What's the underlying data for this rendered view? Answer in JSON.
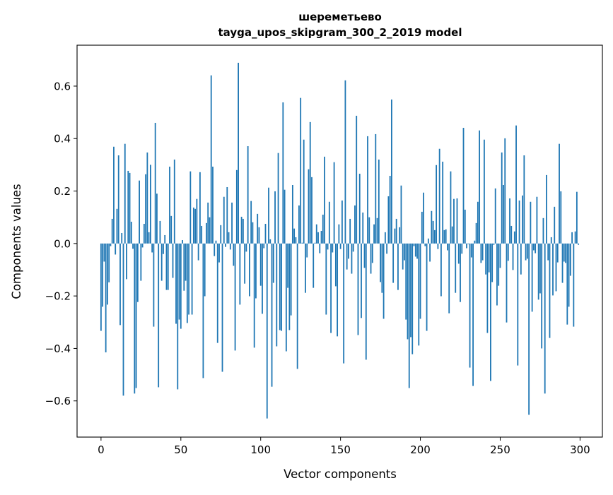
{
  "chart_data": {
    "type": "bar",
    "title": [
      "шереметьево",
      "tayga_upos_skipgram_300_2_2019 model"
    ],
    "xlabel": "Vector components",
    "ylabel": "Components values",
    "xlim": [
      -15,
      314
    ],
    "ylim": [
      -0.738,
      0.756
    ],
    "xticks": [
      0,
      50,
      100,
      150,
      200,
      250,
      300
    ],
    "xtick_labels": [
      "0",
      "50",
      "100",
      "150",
      "200",
      "250",
      "300"
    ],
    "yticks": [
      -0.6,
      -0.4,
      -0.2,
      0.0,
      0.2,
      0.4,
      0.6
    ],
    "ytick_labels": [
      "−0.6",
      "−0.4",
      "−0.2",
      "0.0",
      "0.2",
      "0.4",
      "0.6"
    ],
    "grid": false,
    "bar_color": "#1f77b4",
    "values": [
      -0.333,
      -0.241,
      -0.069,
      -0.415,
      -0.233,
      -0.148,
      -0.01,
      0.094,
      0.369,
      -0.042,
      0.132,
      0.336,
      -0.311,
      0.04,
      -0.58,
      0.38,
      -0.136,
      0.277,
      0.269,
      0.083,
      -0.02,
      -0.572,
      -0.551,
      -0.223,
      0.24,
      -0.142,
      -0.015,
      0.075,
      0.264,
      0.347,
      0.043,
      0.3,
      -0.034,
      -0.317,
      0.46,
      0.19,
      -0.548,
      0.086,
      -0.142,
      -0.04,
      0.032,
      -0.177,
      -0.177,
      0.293,
      0.105,
      -0.131,
      0.32,
      -0.306,
      -0.556,
      -0.29,
      -0.325,
      0.013,
      -0.18,
      -0.142,
      -0.303,
      -0.271,
      0.275,
      -0.271,
      0.137,
      0.132,
      0.17,
      -0.064,
      0.272,
      0.067,
      -0.513,
      -0.201,
      0.078,
      0.156,
      0.1,
      0.641,
      0.293,
      -0.048,
      0.011,
      -0.379,
      -0.072,
      0.07,
      -0.489,
      0.178,
      -0.013,
      0.215,
      0.043,
      -0.023,
      0.156,
      -0.085,
      -0.408,
      0.28,
      0.689,
      -0.233,
      0.102,
      0.094,
      -0.153,
      -0.031,
      0.371,
      -0.201,
      0.162,
      0.081,
      -0.397,
      -0.209,
      0.113,
      0.062,
      -0.161,
      -0.268,
      -0.018,
      0.075,
      -0.667,
      0.213,
      0.016,
      -0.546,
      -0.15,
      0.199,
      -0.392,
      0.345,
      -0.33,
      -0.333,
      0.538,
      0.205,
      -0.411,
      -0.169,
      -0.33,
      -0.274,
      0.223,
      0.057,
      0.024,
      -0.478,
      0.145,
      0.555,
      0.003,
      0.396,
      -0.188,
      -0.053,
      0.283,
      0.463,
      0.253,
      -0.169,
      0.003,
      0.073,
      0.043,
      -0.037,
      0.048,
      0.11,
      0.331,
      -0.271,
      -0.023,
      0.159,
      -0.341,
      -0.034,
      0.31,
      -0.163,
      -0.354,
      0.073,
      -0.021,
      0.164,
      -0.457,
      0.622,
      -0.099,
      -0.058,
      0.094,
      -0.115,
      -0.031,
      0.145,
      0.487,
      -0.349,
      0.266,
      -0.284,
      0.118,
      -0.093,
      -0.443,
      0.409,
      0.1,
      -0.115,
      -0.074,
      0.073,
      0.417,
      0.097,
      0.32,
      -0.147,
      -0.188,
      -0.287,
      0.043,
      -0.039,
      0.18,
      0.258,
      0.549,
      -0.15,
      0.057,
      0.094,
      -0.177,
      0.062,
      0.221,
      -0.099,
      -0.064,
      -0.29,
      -0.365,
      -0.551,
      -0.357,
      -0.422,
      -0.01,
      -0.05,
      -0.058,
      -0.389,
      -0.287,
      0.121,
      0.194,
      -0.01,
      -0.333,
      0.019,
      -0.069,
      0.124,
      0.086,
      0.051,
      0.299,
      -0.021,
      0.361,
      -0.201,
      0.312,
      0.051,
      0.054,
      -0.026,
      -0.266,
      0.275,
      0.065,
      0.17,
      -0.188,
      0.172,
      -0.077,
      -0.223,
      -0.039,
      0.441,
      0.129,
      -0.018,
      -0.002,
      -0.473,
      -0.053,
      -0.543,
      0.011,
      0.078,
      0.159,
      0.431,
      -0.074,
      -0.064,
      0.396,
      -0.118,
      -0.341,
      -0.11,
      -0.524,
      -0.147,
      -0.005,
      0.21,
      -0.236,
      -0.161,
      -0.093,
      0.347,
      0.223,
      0.401,
      -0.301,
      -0.066,
      0.172,
      0.067,
      -0.101,
      0.046,
      0.45,
      -0.465,
      0.164,
      -0.118,
      0.183,
      0.336,
      -0.064,
      -0.058,
      -0.653,
      0.159,
      -0.26,
      -0.026,
      -0.037,
      0.178,
      -0.214,
      -0.19,
      -0.4,
      0.097,
      -0.572,
      0.261,
      -0.064,
      -0.36,
      0.024,
      -0.198,
      0.14,
      -0.182,
      -0.072,
      0.38,
      0.199,
      -0.15,
      -0.069,
      -0.074,
      -0.309,
      -0.241,
      -0.123,
      0.043,
      -0.317,
      0.046,
      0.197,
      -0.005
    ]
  }
}
